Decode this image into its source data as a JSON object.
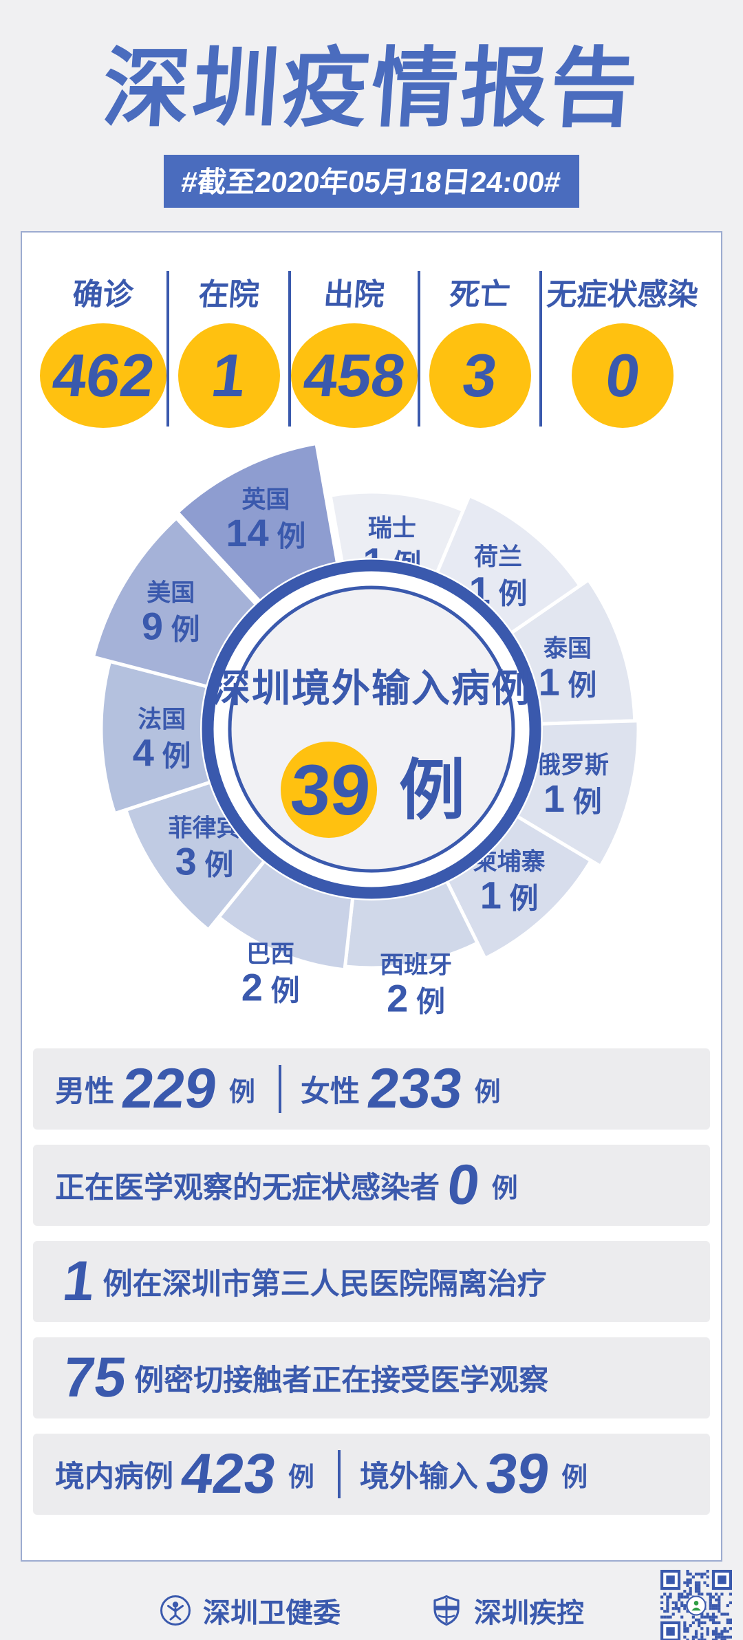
{
  "header": {
    "title": "深圳疫情报告",
    "date_banner": "#截至2020年05月18日24:00#"
  },
  "summary_stats": [
    {
      "label": "确诊",
      "value": "462"
    },
    {
      "label": "在院",
      "value": "1"
    },
    {
      "label": "出院",
      "value": "458"
    },
    {
      "label": "死亡",
      "value": "3"
    },
    {
      "label": "无症状感染",
      "value": "0"
    }
  ],
  "chart_data": {
    "type": "pie",
    "style": "rose-exploded",
    "title": "深圳境外输入病例",
    "center_value": "39",
    "center_unit": "例",
    "unit": "例",
    "total": 39,
    "order": "clockwise-from-top",
    "legend_position": "on-slice",
    "emphasized_slice": "英国",
    "series": [
      {
        "name": "瑞士",
        "value": 1
      },
      {
        "name": "荷兰",
        "value": 1
      },
      {
        "name": "泰国",
        "value": 1
      },
      {
        "name": "俄罗斯",
        "value": 1
      },
      {
        "name": "柬埔寨",
        "value": 1
      },
      {
        "name": "西班牙",
        "value": 2
      },
      {
        "name": "巴西",
        "value": 2
      },
      {
        "name": "菲律宾",
        "value": 3
      },
      {
        "name": "法国",
        "value": 4
      },
      {
        "name": "美国",
        "value": 9
      },
      {
        "name": "英国",
        "value": 14
      }
    ],
    "slice_colors": [
      "#eceef4",
      "#e7eaf3",
      "#e2e6f0",
      "#dde2ee",
      "#d7ddec",
      "#d0d8e9",
      "#c9d2e7",
      "#c0cbe3",
      "#b4c1de",
      "#a5b2d8",
      "#8e9dd0"
    ]
  },
  "details": [
    {
      "segments": [
        {
          "type": "label",
          "text": "男性"
        },
        {
          "type": "num",
          "text": "229"
        },
        {
          "type": "unit",
          "text": "例"
        },
        {
          "type": "divider"
        },
        {
          "type": "label",
          "text": "女性"
        },
        {
          "type": "num",
          "text": "233"
        },
        {
          "type": "unit",
          "text": "例"
        }
      ]
    },
    {
      "segments": [
        {
          "type": "label",
          "text": "正在医学观察的无症状感染者"
        },
        {
          "type": "num",
          "text": "0"
        },
        {
          "type": "unit",
          "text": "例"
        }
      ]
    },
    {
      "segments": [
        {
          "type": "num",
          "text": "1"
        },
        {
          "type": "label",
          "text": "例在深圳市第三人民医院隔离治疗"
        }
      ]
    },
    {
      "segments": [
        {
          "type": "num",
          "text": "75"
        },
        {
          "type": "label",
          "text": "例密切接触者正在接受医学观察"
        }
      ]
    },
    {
      "segments": [
        {
          "type": "label",
          "text": "境内病例"
        },
        {
          "type": "num",
          "text": "423"
        },
        {
          "type": "unit",
          "text": "例"
        },
        {
          "type": "divider"
        },
        {
          "type": "label",
          "text": "境外输入"
        },
        {
          "type": "num",
          "text": "39"
        },
        {
          "type": "unit",
          "text": "例"
        }
      ]
    }
  ],
  "footer": {
    "brands": [
      {
        "name": "深圳卫健委"
      },
      {
        "name": "深圳疾控"
      }
    ]
  },
  "colors": {
    "accent_blue": "#3a59ad",
    "title_blue": "#4a6cbe",
    "highlight_yellow": "#ffc110",
    "page_bg": "#f0f0f2",
    "card_border": "#9cabd0",
    "bar_bg": "#ececee",
    "pie_center_bg": "#f1f1f4"
  }
}
